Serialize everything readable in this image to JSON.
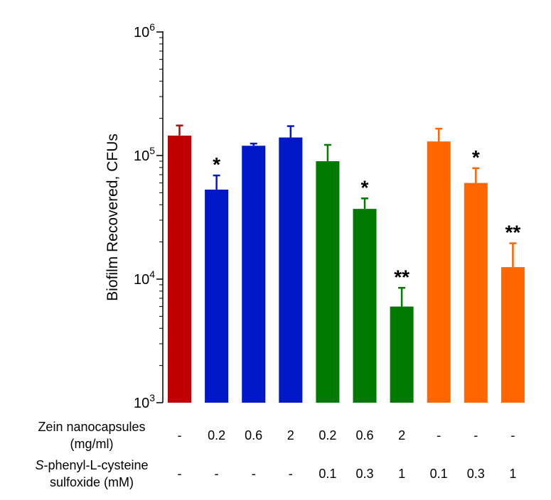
{
  "chart_data": {
    "type": "bar",
    "yscale": "log",
    "ylabel": "Biofilm Recovered, CFUs",
    "ylim": [
      1000,
      1000000
    ],
    "yticks": [
      {
        "value": 1000,
        "base": "10",
        "exp": "3"
      },
      {
        "value": 10000,
        "base": "10",
        "exp": "4"
      },
      {
        "value": 100000,
        "base": "10",
        "exp": "5"
      },
      {
        "value": 1000000,
        "base": "10",
        "exp": "6"
      }
    ],
    "colors": {
      "control": "#c00000",
      "zein": "#0018c8",
      "zein_spcso": "#007a00",
      "spcso": "#ff6600"
    },
    "bars": [
      {
        "group": "control",
        "color": "#c00000",
        "value": 145000,
        "error": 30000,
        "sig": ""
      },
      {
        "group": "zein",
        "color": "#0018c8",
        "value": 53000,
        "error": 16000,
        "sig": "*"
      },
      {
        "group": "zein",
        "color": "#0018c8",
        "value": 120000,
        "error": 5000,
        "sig": ""
      },
      {
        "group": "zein",
        "color": "#0018c8",
        "value": 140000,
        "error": 33000,
        "sig": ""
      },
      {
        "group": "zein_spcso",
        "color": "#007a00",
        "value": 90000,
        "error": 32000,
        "sig": ""
      },
      {
        "group": "zein_spcso",
        "color": "#007a00",
        "value": 37000,
        "error": 8000,
        "sig": "*"
      },
      {
        "group": "zein_spcso",
        "color": "#007a00",
        "value": 6000,
        "error": 2500,
        "sig": "**"
      },
      {
        "group": "spcso",
        "color": "#ff6600",
        "value": 130000,
        "error": 35000,
        "sig": ""
      },
      {
        "group": "spcso",
        "color": "#ff6600",
        "value": 60000,
        "error": 19000,
        "sig": "*"
      },
      {
        "group": "spcso",
        "color": "#ff6600",
        "value": 12500,
        "error": 7000,
        "sig": "**"
      }
    ]
  },
  "table": {
    "row1": {
      "label_line1": "Zein nanocapsules",
      "label_line2": "(mg/ml)",
      "values": [
        "-",
        "0.2",
        "0.6",
        "2",
        "0.2",
        "0.6",
        "2",
        "-",
        "-",
        "-"
      ]
    },
    "row2": {
      "label_italic": "S",
      "label_line1_rest": "-phenyl-L-cysteine",
      "label_line2": "sulfoxide (mM)",
      "values": [
        "-",
        "-",
        "-",
        "-",
        "0.1",
        "0.3",
        "1",
        "0.1",
        "0.3",
        "1"
      ]
    }
  }
}
